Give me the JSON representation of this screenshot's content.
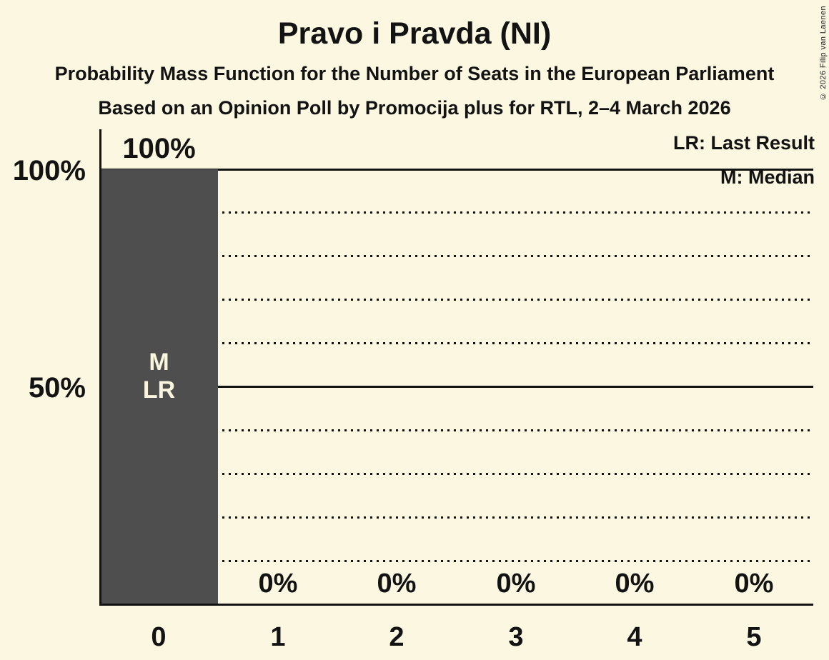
{
  "title": "Pravo i Pravda (NI)",
  "subtitles": [
    "Probability Mass Function for the Number of Seats in the European Parliament",
    "Based on an Opinion Poll by Promocija plus for RTL, 2–4 March 2026"
  ],
  "copyright": "© 2026 Filip van Laenen",
  "legend": {
    "last_result": "LR: Last Result",
    "median": "M: Median"
  },
  "y_axis": {
    "top_label": "100%",
    "mid_label": "50%"
  },
  "bar_annotations": {
    "median": "M",
    "last_result": "LR"
  },
  "bars": [
    {
      "seats": "0",
      "value_label": "100%"
    },
    {
      "seats": "1",
      "value_label": "0%"
    },
    {
      "seats": "2",
      "value_label": "0%"
    },
    {
      "seats": "3",
      "value_label": "0%"
    },
    {
      "seats": "4",
      "value_label": "0%"
    },
    {
      "seats": "5",
      "value_label": "0%"
    }
  ],
  "colors": {
    "background": "#FBF7E1",
    "bar": "#4E4E4E",
    "text": "#131313",
    "bar_text": "#FAF5DE"
  },
  "chart_data": {
    "type": "bar",
    "title": "Pravo i Pravda (NI)",
    "subtitle": "Probability Mass Function for the Number of Seats in the European Parliament",
    "source_note": "Based on an Opinion Poll by Promocija plus for RTL, 2–4 March 2026",
    "categories": [
      0,
      1,
      2,
      3,
      4,
      5
    ],
    "values": [
      100,
      0,
      0,
      0,
      0,
      0
    ],
    "value_labels": [
      "100%",
      "0%",
      "0%",
      "0%",
      "0%",
      "0%"
    ],
    "xlabel": "",
    "ylabel": "",
    "ylim": [
      0,
      100
    ],
    "y_tick_labels": [
      "100%",
      "50%"
    ],
    "gridlines": {
      "solid_at": [
        100,
        50
      ],
      "dotted_at": [
        90,
        80,
        70,
        60,
        40,
        30,
        20,
        10
      ]
    },
    "legend": [
      "LR: Last Result",
      "M: Median"
    ],
    "legend_position": "top-right",
    "annotations": [
      {
        "category": 0,
        "labels": [
          "M",
          "LR"
        ]
      }
    ]
  }
}
